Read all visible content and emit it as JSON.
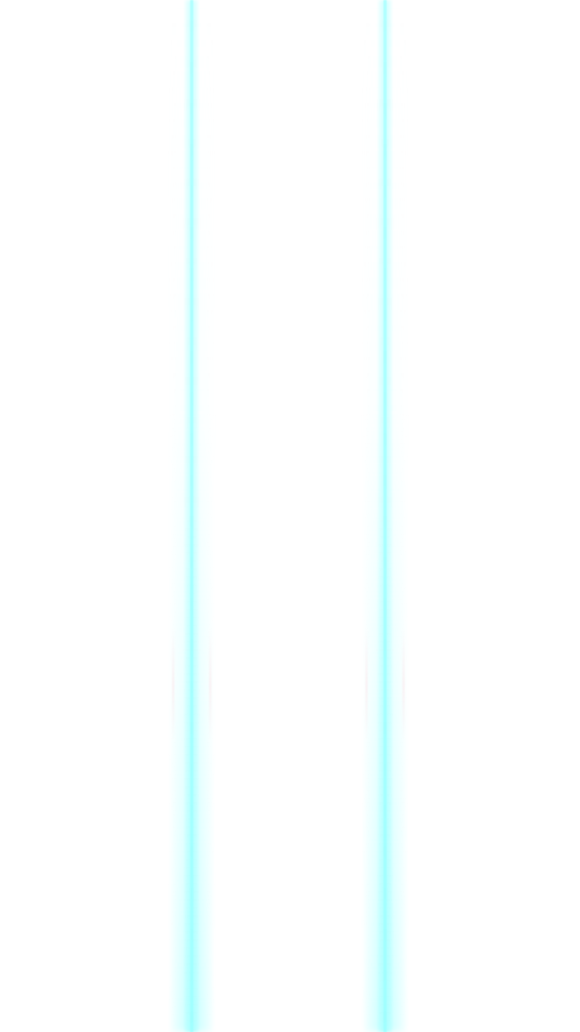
{
  "scene": {
    "background_color": "#ffffff",
    "beam_color": "#c8ffff",
    "fringe_color": "#ffc8d2",
    "beams": [
      {
        "name": "left-light-beam"
      },
      {
        "name": "right-light-beam"
      }
    ]
  }
}
